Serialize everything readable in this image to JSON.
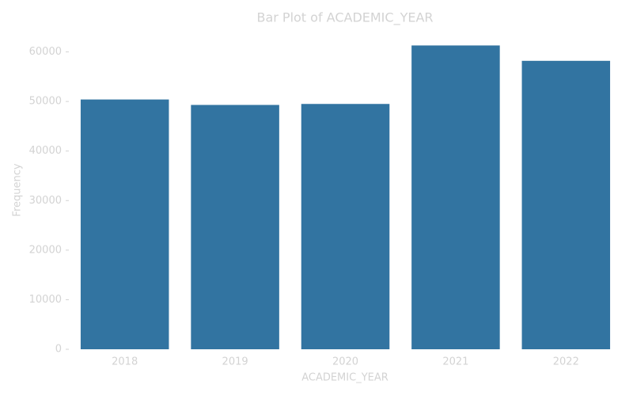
{
  "chart_data": {
    "type": "bar",
    "title": "Bar Plot of ACADEMIC_YEAR",
    "x_label": "ACADEMIC_YEAR",
    "y_label": "Frequency",
    "categories": [
      "2018",
      "2019",
      "2020",
      "2021",
      "2022"
    ],
    "values": [
      50400,
      49300,
      49500,
      61300,
      58200
    ],
    "color": "#3274a1",
    "ylim": [
      0,
      64400
    ],
    "yticks": [
      0,
      10000,
      20000,
      30000,
      40000,
      50000,
      60000
    ],
    "grid": false
  }
}
